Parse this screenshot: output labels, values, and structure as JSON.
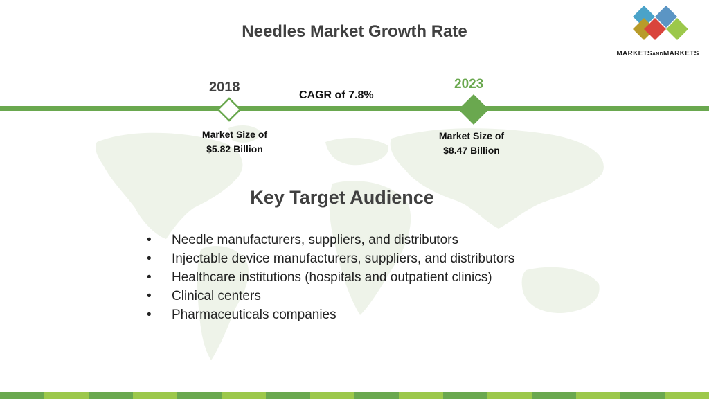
{
  "title": "Needles Market Growth Rate",
  "logo": {
    "name_part1": "MARKETS",
    "name_part2": "AND",
    "name_part3": "MARKETS",
    "tile_colors": [
      "#4aa3c9",
      "#5b95c4",
      "#8dc04a",
      "#d9443c",
      "#9cc84b",
      "#b89b2a"
    ]
  },
  "timeline": {
    "start": {
      "year": "2018",
      "size_label": "Market Size of",
      "size_value": "$5.82 Billion"
    },
    "end": {
      "year": "2023",
      "size_label": "Market Size of",
      "size_value": "$8.47 Billion"
    },
    "cagr": "CAGR of 7.8%",
    "accent_color": "#6aa84f"
  },
  "audience": {
    "heading": "Key Target Audience",
    "items": [
      "Needle manufacturers, suppliers, and distributors",
      "Injectable device manufacturers, suppliers, and distributors",
      "Healthcare institutions (hospitals and outpatient clinics)",
      "Clinical centers",
      "Pharmaceuticals companies"
    ]
  },
  "footer_colors": [
    "#6aa84f",
    "#9cc84b"
  ]
}
